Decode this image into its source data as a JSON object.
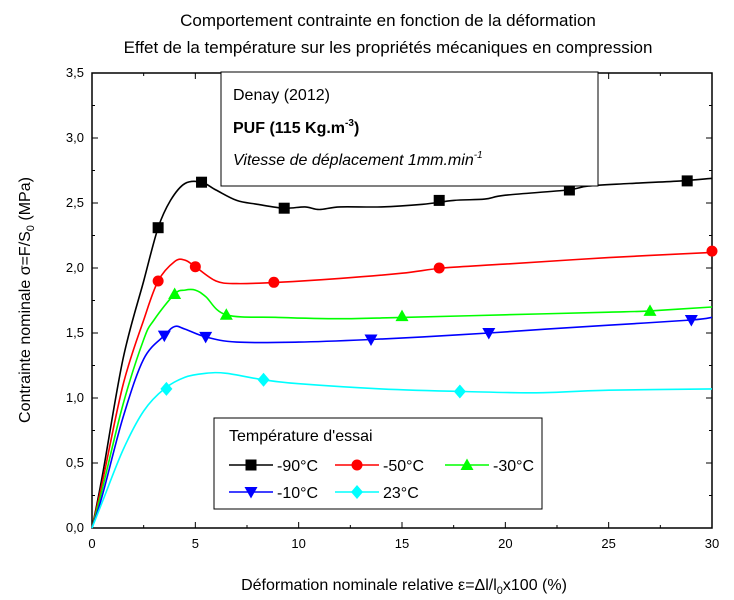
{
  "chart_data": {
    "type": "line",
    "title": "Comportement contrainte en fonction de la déformation",
    "subtitle": "Effet de la température sur les propriétés mécaniques en compression",
    "xlabel": "Déformation nominale relative ε=Δl/l0x100 (%)",
    "ylabel": "Contrainte nominale σ=F/S0 (MPa)",
    "xlim": [
      0,
      30
    ],
    "ylim": [
      0,
      3.5
    ],
    "x_ticks": [
      "0",
      "5",
      "10",
      "15",
      "20",
      "25",
      "30"
    ],
    "y_ticks": [
      "0,0",
      "0,5",
      "1,0",
      "1,5",
      "2,0",
      "2,5",
      "3,0",
      "3,5"
    ],
    "grid": false,
    "annotation": {
      "line1": "Denay (2012)",
      "line2": "PUF (115 Kg.m-3)",
      "line3": "Vitesse de déplacement 1mm.min-1"
    },
    "legend": {
      "title": "Température d'essai",
      "placement": "bottom-center"
    },
    "series": [
      {
        "name": "-90°C",
        "color": "#000000",
        "marker": "square",
        "x": [
          0,
          0.5,
          1.5,
          2.5,
          3.2,
          3.8,
          4.5,
          5.3,
          6,
          7,
          8,
          9.3,
          10.3,
          11,
          12,
          14,
          16,
          17.5,
          19,
          20,
          23,
          24,
          26,
          28.5,
          30
        ],
        "y": [
          0,
          0.4,
          1.3,
          1.9,
          2.31,
          2.52,
          2.65,
          2.66,
          2.6,
          2.52,
          2.49,
          2.46,
          2.47,
          2.45,
          2.47,
          2.47,
          2.49,
          2.52,
          2.53,
          2.56,
          2.6,
          2.63,
          2.65,
          2.67,
          2.69
        ],
        "markers": [
          [
            3.2,
            2.31
          ],
          [
            5.3,
            2.66
          ],
          [
            9.3,
            2.46
          ],
          [
            16.8,
            2.52
          ],
          [
            23.1,
            2.6
          ],
          [
            28.8,
            2.67
          ]
        ]
      },
      {
        "name": "-50°C",
        "color": "#ff0000",
        "marker": "circle",
        "x": [
          0,
          0.5,
          1.5,
          2.5,
          3.2,
          4,
          4.5,
          5,
          6,
          7,
          9,
          12,
          15,
          17,
          20,
          25,
          30
        ],
        "y": [
          0,
          0.35,
          1.1,
          1.6,
          1.9,
          2.05,
          2.06,
          2.01,
          1.9,
          1.88,
          1.89,
          1.92,
          1.96,
          2.0,
          2.03,
          2.08,
          2.12
        ],
        "markers": [
          [
            3.2,
            1.9
          ],
          [
            5.0,
            2.01
          ],
          [
            8.8,
            1.89
          ],
          [
            16.8,
            2.0
          ],
          [
            30,
            2.13
          ]
        ]
      },
      {
        "name": "-30°C",
        "color": "#00ff00",
        "marker": "triangle-up",
        "x": [
          0,
          0.5,
          1.5,
          2.5,
          3,
          4,
          4.5,
          5,
          5.5,
          6.5,
          9,
          12,
          15,
          20,
          25,
          27,
          30
        ],
        "y": [
          0,
          0.3,
          0.95,
          1.45,
          1.6,
          1.8,
          1.83,
          1.83,
          1.78,
          1.64,
          1.62,
          1.61,
          1.62,
          1.64,
          1.66,
          1.67,
          1.7
        ],
        "markers": [
          [
            4.0,
            1.8
          ],
          [
            6.5,
            1.64
          ],
          [
            15.0,
            1.63
          ],
          [
            27.0,
            1.67
          ]
        ]
      },
      {
        "name": "-10°C",
        "color": "#0000ff",
        "marker": "triangle-down",
        "x": [
          0,
          0.5,
          1.5,
          2.5,
          3.5,
          4,
          4.5,
          5.5,
          7,
          10,
          13.5,
          16,
          19.2,
          22,
          25,
          29,
          30
        ],
        "y": [
          0,
          0.25,
          0.85,
          1.3,
          1.48,
          1.55,
          1.53,
          1.47,
          1.43,
          1.43,
          1.45,
          1.47,
          1.5,
          1.53,
          1.56,
          1.6,
          1.62
        ],
        "markers": [
          [
            3.5,
            1.48
          ],
          [
            5.5,
            1.47
          ],
          [
            13.5,
            1.45
          ],
          [
            19.2,
            1.5
          ],
          [
            29.0,
            1.6
          ]
        ]
      },
      {
        "name": "23°C",
        "color": "#00ffff",
        "marker": "diamond",
        "x": [
          0,
          0.5,
          1.5,
          2.5,
          3.5,
          4.5,
          5.5,
          6.5,
          8.3,
          10,
          14,
          18,
          21.5,
          25,
          30
        ],
        "y": [
          0,
          0.2,
          0.6,
          0.9,
          1.07,
          1.16,
          1.19,
          1.19,
          1.14,
          1.11,
          1.07,
          1.05,
          1.04,
          1.06,
          1.07
        ],
        "markers": [
          [
            3.6,
            1.07
          ],
          [
            8.3,
            1.14
          ],
          [
            17.8,
            1.05
          ]
        ]
      }
    ]
  }
}
